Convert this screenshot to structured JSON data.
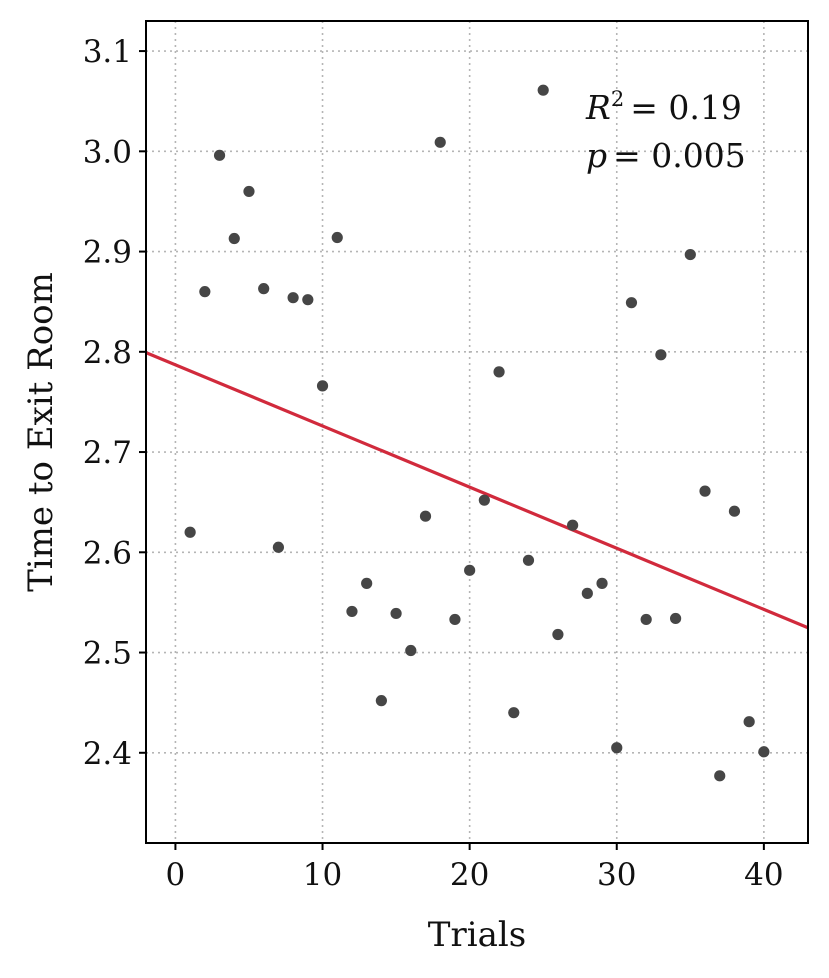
{
  "chart_data": {
    "type": "scatter",
    "title": "",
    "xlabel": "Trials",
    "ylabel": "Time to Exit Room",
    "xlim": [
      -2,
      43
    ],
    "ylim": [
      2.31,
      3.13
    ],
    "xticks": [
      0,
      10,
      20,
      30,
      40
    ],
    "yticks": [
      2.4,
      2.5,
      2.6,
      2.7,
      2.8,
      2.9,
      3.0,
      3.1
    ],
    "grid": true,
    "points": [
      {
        "x": 1,
        "y": 2.62
      },
      {
        "x": 2,
        "y": 2.86
      },
      {
        "x": 3,
        "y": 2.996
      },
      {
        "x": 4,
        "y": 2.913
      },
      {
        "x": 5,
        "y": 2.96
      },
      {
        "x": 6,
        "y": 2.863
      },
      {
        "x": 7,
        "y": 2.605
      },
      {
        "x": 8,
        "y": 2.854
      },
      {
        "x": 9,
        "y": 2.852
      },
      {
        "x": 10,
        "y": 2.766
      },
      {
        "x": 11,
        "y": 2.914
      },
      {
        "x": 12,
        "y": 2.541
      },
      {
        "x": 13,
        "y": 2.569
      },
      {
        "x": 14,
        "y": 2.452
      },
      {
        "x": 15,
        "y": 2.539
      },
      {
        "x": 16,
        "y": 2.502
      },
      {
        "x": 17,
        "y": 2.636
      },
      {
        "x": 18,
        "y": 3.009
      },
      {
        "x": 19,
        "y": 2.533
      },
      {
        "x": 20,
        "y": 2.582
      },
      {
        "x": 21,
        "y": 2.652
      },
      {
        "x": 22,
        "y": 2.78
      },
      {
        "x": 23,
        "y": 2.44
      },
      {
        "x": 24,
        "y": 2.592
      },
      {
        "x": 25,
        "y": 3.061
      },
      {
        "x": 26,
        "y": 2.518
      },
      {
        "x": 27,
        "y": 2.627
      },
      {
        "x": 28,
        "y": 2.559
      },
      {
        "x": 29,
        "y": 2.569
      },
      {
        "x": 30,
        "y": 2.405
      },
      {
        "x": 31,
        "y": 2.849
      },
      {
        "x": 32,
        "y": 2.533
      },
      {
        "x": 33,
        "y": 2.797
      },
      {
        "x": 34,
        "y": 2.534
      },
      {
        "x": 35,
        "y": 2.897
      },
      {
        "x": 36,
        "y": 2.661
      },
      {
        "x": 37,
        "y": 2.377
      },
      {
        "x": 38,
        "y": 2.641
      },
      {
        "x": 39,
        "y": 2.431
      },
      {
        "x": 40,
        "y": 2.401
      }
    ],
    "point_color": "#464646",
    "fit_line": {
      "intercept": 2.787,
      "slope": -0.0061,
      "color": "#d12a3c"
    },
    "annotation": {
      "r2_symbol": "R",
      "r2_exp": "2",
      "r2_value": "= 0.19",
      "p_symbol": "p",
      "p_value": "= 0.005"
    }
  }
}
